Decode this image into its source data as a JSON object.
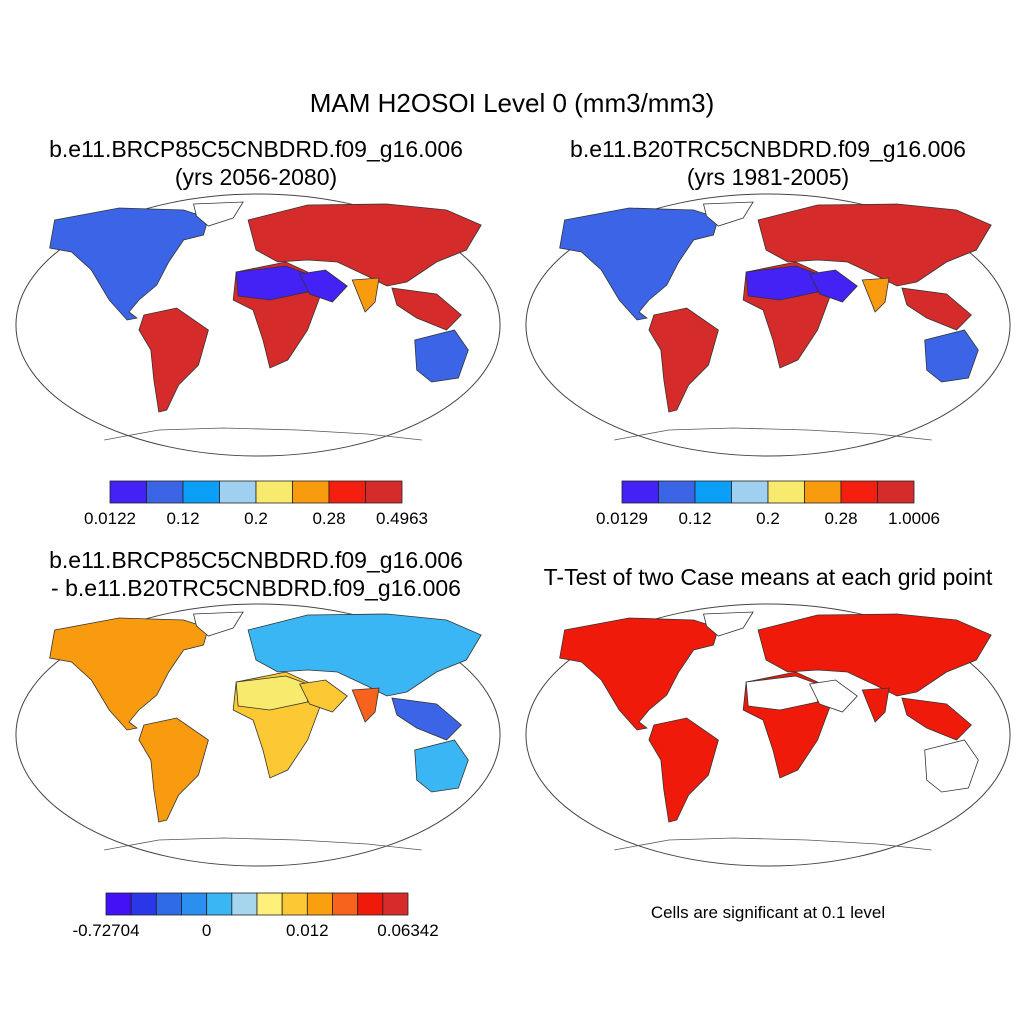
{
  "figure": {
    "title": "MAM H2OSOI Level 0 (mm3/mm3)"
  },
  "panels": [
    {
      "id": "case1",
      "title_line1": "b.e11.BRCP85C5CNBDRD.f09_g16.006",
      "title_line2": "(yrs 2056-2080)",
      "colorbar": {
        "colors": [
          "#4421f5",
          "#3c64e6",
          "#0ba0f8",
          "#9fd0ef",
          "#f7ea6c",
          "#f99b0f",
          "#f51f10",
          "#d62b2b"
        ],
        "labels": [
          "0.0122",
          "0.12",
          "0.2",
          "0.28",
          "0.4963"
        ]
      },
      "regions": {
        "north_america": "#3c64e6",
        "greenland": "#ffffff",
        "south_america": "#d62b2b",
        "africa": "#d62b2b",
        "sahara": "#4421f5",
        "eurasia": "#d62b2b",
        "middle_east": "#4421f5",
        "india": "#f99b0f",
        "se_asia": "#d62b2b",
        "australia": "#3c64e6"
      }
    },
    {
      "id": "case2",
      "title_line1": "b.e11.B20TRC5CNBDRD.f09_g16.006",
      "title_line2": "(yrs 1981-2005)",
      "colorbar": {
        "colors": [
          "#4421f5",
          "#3c64e6",
          "#0ba0f8",
          "#9fd0ef",
          "#f7ea6c",
          "#f99b0f",
          "#f51f10",
          "#d62b2b"
        ],
        "labels": [
          "0.0129",
          "0.12",
          "0.2",
          "0.28",
          "1.0006"
        ]
      },
      "regions": {
        "north_america": "#3c64e6",
        "greenland": "#ffffff",
        "south_america": "#d62b2b",
        "africa": "#d62b2b",
        "sahara": "#4421f5",
        "eurasia": "#d62b2b",
        "middle_east": "#4421f5",
        "india": "#f99b0f",
        "se_asia": "#d62b2b",
        "australia": "#3c64e6"
      }
    },
    {
      "id": "difference",
      "title_line1": "b.e11.BRCP85C5CNBDRD.f09_g16.006",
      "title_line2": "- b.e11.B20TRC5CNBDRD.f09_g16.006",
      "colorbar": {
        "colors": [
          "#4411f6",
          "#2a37e8",
          "#2f6be6",
          "#2b8ff0",
          "#3ab6f4",
          "#a6d6ee",
          "#fff07a",
          "#fcc833",
          "#faa00f",
          "#f7621c",
          "#f01a0b",
          "#d62b2b"
        ],
        "labels": [
          "-0.72704",
          "0",
          "0.012",
          "0.06342"
        ]
      },
      "regions": {
        "north_america": "#f99b0f",
        "greenland": "#ffffff",
        "south_america": "#f99b0f",
        "africa": "#fcc833",
        "sahara": "#f7ea6c",
        "eurasia": "#3ab6f4",
        "middle_east": "#fcc833",
        "india": "#f7621c",
        "se_asia": "#3c64e6",
        "australia": "#3ab6f4"
      }
    },
    {
      "id": "ttest",
      "title_line1": "T-Test of two Case means at each grid point",
      "note": "Cells are significant at 0.1 level",
      "regions": {
        "north_america": "#f01a0b",
        "greenland": "#ffffff",
        "south_america": "#f01a0b",
        "africa": "#f01a0b",
        "sahara": "#ffffff",
        "eurasia": "#f01a0b",
        "middle_east": "#ffffff",
        "india": "#f01a0b",
        "se_asia": "#f01a0b",
        "australia": "#ffffff"
      }
    }
  ]
}
